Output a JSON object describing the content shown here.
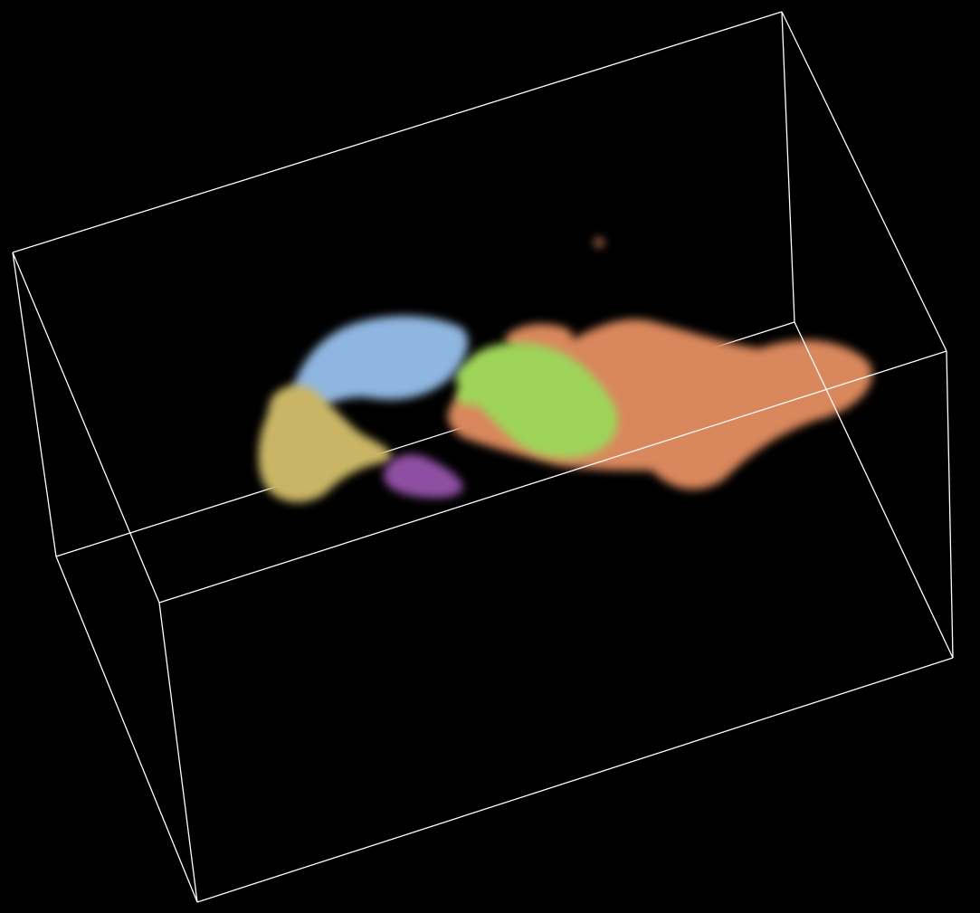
{
  "scene": {
    "background_color": "#000000",
    "bounding_box_color": "#ffffff",
    "regions": [
      {
        "id": "blue-region",
        "color": "#8fb6e0"
      },
      {
        "id": "yellow-region",
        "color": "#c9b565"
      },
      {
        "id": "purple-region",
        "color": "#8e4fa3"
      },
      {
        "id": "green-region",
        "color": "#9fd45a"
      },
      {
        "id": "orange-region",
        "color": "#d9875c"
      }
    ]
  }
}
